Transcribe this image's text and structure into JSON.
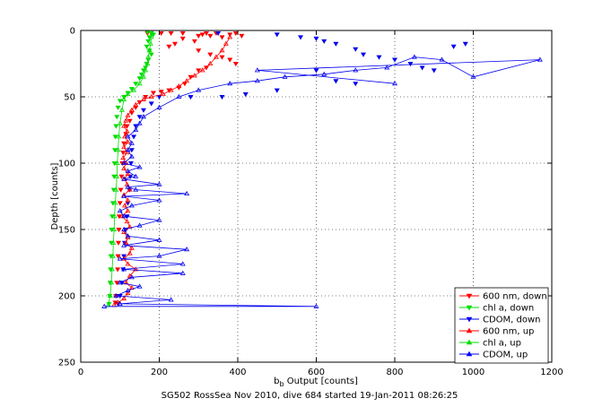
{
  "chart_data": {
    "type": "scatter",
    "title": "",
    "xlabel_main": "b",
    "xlabel_sub": "b",
    "xlabel_rest": " Output [counts]",
    "ylabel": "Depth [counts]",
    "caption": "SG502 RossSea Nov 2010, dive 684 started 19-Jan-2011 08:26:25",
    "xlim": [
      0,
      1200
    ],
    "ylim": [
      250,
      0
    ],
    "x_ticks": [
      "0",
      "200",
      "400",
      "600",
      "800",
      "1000",
      "1200"
    ],
    "y_ticks": [
      "0",
      "50",
      "100",
      "150",
      "200",
      "250"
    ],
    "grid": true,
    "legend_position": "bottom-right",
    "series": [
      {
        "name": "600 nm, down",
        "color": "#ff0000",
        "marker": "triangle-down",
        "points": [
          [
            170,
            2
          ],
          [
            205,
            2
          ],
          [
            230,
            2
          ],
          [
            260,
            2
          ],
          [
            300,
            4
          ],
          [
            310,
            3
          ],
          [
            320,
            2
          ],
          [
            330,
            4
          ],
          [
            345,
            2
          ],
          [
            360,
            5
          ],
          [
            380,
            3
          ],
          [
            395,
            2
          ],
          [
            410,
            4
          ],
          [
            260,
            6
          ],
          [
            240,
            10
          ],
          [
            225,
            12
          ],
          [
            290,
            8
          ],
          [
            300,
            15
          ],
          [
            330,
            18
          ],
          [
            360,
            20
          ],
          [
            380,
            22
          ],
          [
            395,
            25
          ],
          [
            320,
            28
          ],
          [
            300,
            30
          ],
          [
            280,
            35
          ],
          [
            265,
            40
          ],
          [
            250,
            43
          ],
          [
            225,
            45
          ],
          [
            205,
            46
          ],
          [
            185,
            47
          ],
          [
            165,
            50
          ],
          [
            150,
            54
          ],
          [
            140,
            58
          ],
          [
            130,
            62
          ],
          [
            125,
            68
          ],
          [
            118,
            72
          ],
          [
            115,
            78
          ],
          [
            110,
            85
          ],
          [
            108,
            92
          ],
          [
            106,
            100
          ],
          [
            104,
            110
          ],
          [
            102,
            120
          ],
          [
            100,
            130
          ],
          [
            98,
            140
          ],
          [
            97,
            150
          ],
          [
            96,
            160
          ],
          [
            95,
            170
          ],
          [
            94,
            180
          ],
          [
            92,
            190
          ],
          [
            90,
            200
          ],
          [
            88,
            205
          ]
        ]
      },
      {
        "name": "chl a, down",
        "color": "#00dd00",
        "marker": "triangle-down",
        "points": [
          [
            170,
            1
          ],
          [
            180,
            2
          ],
          [
            185,
            3
          ],
          [
            175,
            5
          ],
          [
            172,
            8
          ],
          [
            168,
            12
          ],
          [
            175,
            15
          ],
          [
            180,
            18
          ],
          [
            172,
            22
          ],
          [
            168,
            25
          ],
          [
            165,
            28
          ],
          [
            160,
            30
          ],
          [
            155,
            33
          ],
          [
            150,
            36
          ],
          [
            140,
            40
          ],
          [
            130,
            44
          ],
          [
            120,
            47
          ],
          [
            110,
            50
          ],
          [
            100,
            53
          ],
          [
            95,
            58
          ],
          [
            92,
            65
          ],
          [
            90,
            72
          ],
          [
            88,
            80
          ],
          [
            87,
            90
          ],
          [
            86,
            100
          ],
          [
            85,
            110
          ],
          [
            84,
            120
          ],
          [
            82,
            130
          ],
          [
            80,
            140
          ],
          [
            79,
            150
          ],
          [
            78,
            160
          ],
          [
            77,
            170
          ],
          [
            76,
            180
          ],
          [
            75,
            190
          ],
          [
            74,
            200
          ],
          [
            72,
            206
          ]
        ]
      },
      {
        "name": "CDOM, down",
        "color": "#0000ee",
        "marker": "triangle-down",
        "points": [
          [
            350,
            2
          ],
          [
            500,
            3
          ],
          [
            560,
            5
          ],
          [
            600,
            6
          ],
          [
            620,
            8
          ],
          [
            650,
            10
          ],
          [
            700,
            14
          ],
          [
            720,
            18
          ],
          [
            760,
            20
          ],
          [
            800,
            22
          ],
          [
            840,
            25
          ],
          [
            870,
            28
          ],
          [
            900,
            30
          ],
          [
            950,
            12
          ],
          [
            980,
            10
          ],
          [
            600,
            30
          ],
          [
            650,
            38
          ],
          [
            700,
            40
          ],
          [
            500,
            45
          ],
          [
            420,
            48
          ],
          [
            360,
            50
          ],
          [
            280,
            50
          ],
          [
            200,
            50
          ],
          [
            180,
            55
          ],
          [
            160,
            60
          ],
          [
            150,
            65
          ],
          [
            140,
            72
          ],
          [
            135,
            80
          ],
          [
            130,
            90
          ],
          [
            128,
            100
          ],
          [
            126,
            110
          ],
          [
            124,
            120
          ],
          [
            120,
            130
          ],
          [
            118,
            140
          ],
          [
            115,
            150
          ],
          [
            112,
            160
          ],
          [
            110,
            170
          ],
          [
            108,
            180
          ],
          [
            105,
            190
          ],
          [
            100,
            200
          ],
          [
            95,
            206
          ]
        ]
      },
      {
        "name": "600 nm, up",
        "color": "#ff0000",
        "marker": "triangle-up",
        "points": [
          [
            85,
            207
          ],
          [
            95,
            205
          ],
          [
            110,
            202
          ],
          [
            120,
            198
          ],
          [
            130,
            194
          ],
          [
            115,
            190
          ],
          [
            125,
            185
          ],
          [
            140,
            180
          ],
          [
            120,
            176
          ],
          [
            110,
            172
          ],
          [
            125,
            168
          ],
          [
            130,
            164
          ],
          [
            115,
            160
          ],
          [
            120,
            156
          ],
          [
            110,
            152
          ],
          [
            125,
            148
          ],
          [
            118,
            144
          ],
          [
            105,
            140
          ],
          [
            120,
            136
          ],
          [
            112,
            132
          ],
          [
            120,
            128
          ],
          [
            110,
            124
          ],
          [
            125,
            120
          ],
          [
            118,
            116
          ],
          [
            112,
            112
          ],
          [
            120,
            108
          ],
          [
            110,
            104
          ],
          [
            115,
            100
          ],
          [
            108,
            96
          ],
          [
            118,
            92
          ],
          [
            110,
            88
          ],
          [
            120,
            84
          ],
          [
            112,
            80
          ],
          [
            118,
            76
          ],
          [
            110,
            72
          ],
          [
            115,
            68
          ],
          [
            120,
            64
          ],
          [
            130,
            60
          ],
          [
            140,
            56
          ],
          [
            160,
            52
          ],
          [
            180,
            50
          ],
          [
            210,
            48
          ],
          [
            230,
            45
          ],
          [
            250,
            42
          ],
          [
            270,
            38
          ],
          [
            290,
            34
          ],
          [
            310,
            30
          ],
          [
            330,
            25
          ],
          [
            345,
            20
          ],
          [
            360,
            15
          ],
          [
            370,
            10
          ],
          [
            380,
            5
          ]
        ]
      },
      {
        "name": "chl a, up",
        "color": "#00dd00",
        "marker": "triangle-up",
        "points": [
          [
            70,
            207
          ],
          [
            75,
            200
          ],
          [
            78,
            190
          ],
          [
            80,
            180
          ],
          [
            82,
            170
          ],
          [
            83,
            160
          ],
          [
            85,
            150
          ],
          [
            86,
            140
          ],
          [
            88,
            130
          ],
          [
            90,
            120
          ],
          [
            92,
            110
          ],
          [
            93,
            100
          ],
          [
            95,
            90
          ],
          [
            97,
            80
          ],
          [
            100,
            70
          ],
          [
            105,
            60
          ],
          [
            110,
            52
          ],
          [
            120,
            48
          ],
          [
            135,
            45
          ],
          [
            150,
            40
          ],
          [
            160,
            35
          ],
          [
            165,
            30
          ],
          [
            170,
            25
          ],
          [
            172,
            20
          ],
          [
            175,
            15
          ],
          [
            178,
            10
          ],
          [
            180,
            5
          ],
          [
            182,
            2
          ]
        ]
      },
      {
        "name": "CDOM, up",
        "color": "#0000ee",
        "marker": "triangle-up",
        "points": [
          [
            60,
            208
          ],
          [
            600,
            208
          ],
          [
            100,
            206
          ],
          [
            230,
            203
          ],
          [
            90,
            200
          ],
          [
            120,
            196
          ],
          [
            150,
            193
          ],
          [
            100,
            190
          ],
          [
            130,
            186
          ],
          [
            260,
            183
          ],
          [
            110,
            180
          ],
          [
            260,
            176
          ],
          [
            100,
            172
          ],
          [
            200,
            170
          ],
          [
            270,
            165
          ],
          [
            110,
            162
          ],
          [
            200,
            158
          ],
          [
            120,
            155
          ],
          [
            110,
            150
          ],
          [
            150,
            147
          ],
          [
            200,
            143
          ],
          [
            110,
            140
          ],
          [
            100,
            136
          ],
          [
            130,
            132
          ],
          [
            200,
            128
          ],
          [
            110,
            125
          ],
          [
            270,
            123
          ],
          [
            140,
            120
          ],
          [
            120,
            118
          ],
          [
            200,
            116
          ],
          [
            110,
            112
          ],
          [
            140,
            110
          ],
          [
            120,
            106
          ],
          [
            150,
            103
          ],
          [
            110,
            100
          ],
          [
            130,
            95
          ],
          [
            120,
            90
          ],
          [
            130,
            85
          ],
          [
            120,
            80
          ],
          [
            140,
            75
          ],
          [
            150,
            70
          ],
          [
            160,
            65
          ],
          [
            200,
            58
          ],
          [
            250,
            50
          ],
          [
            300,
            45
          ],
          [
            380,
            40
          ],
          [
            450,
            38
          ],
          [
            520,
            35
          ],
          [
            620,
            33
          ],
          [
            700,
            30
          ],
          [
            780,
            28
          ],
          [
            850,
            20
          ],
          [
            920,
            22
          ],
          [
            1000,
            35
          ],
          [
            1170,
            22
          ],
          [
            450,
            30
          ],
          [
            800,
            40
          ]
        ]
      }
    ]
  }
}
